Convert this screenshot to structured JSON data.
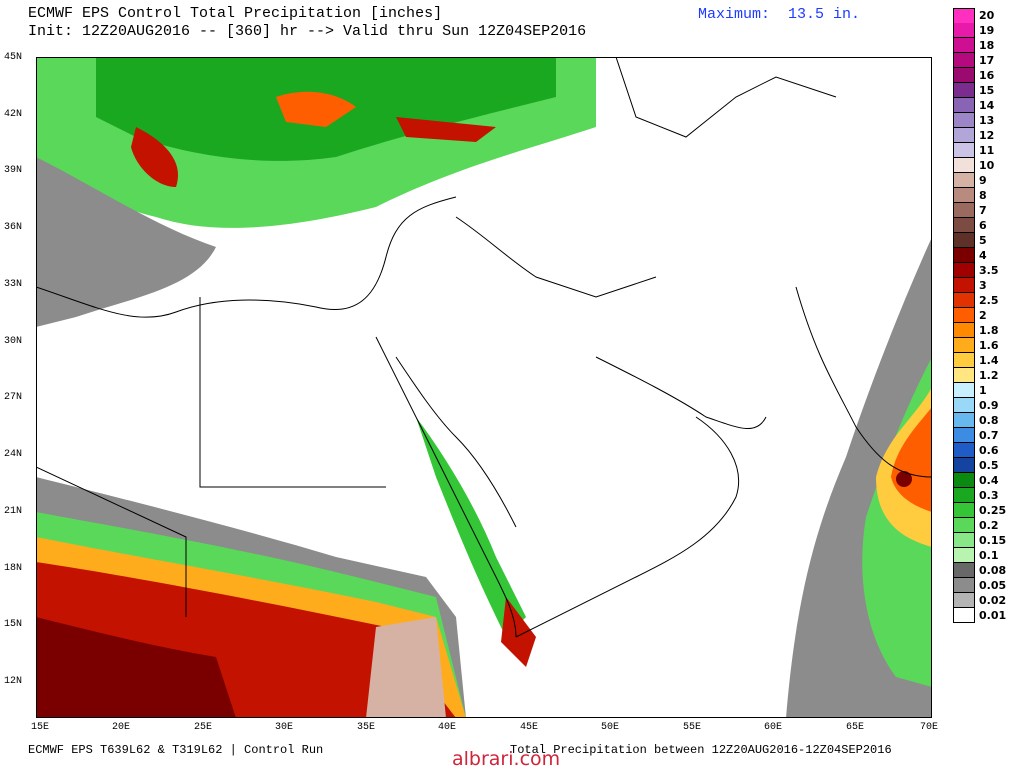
{
  "header": {
    "title": "ECMWF EPS Control Total Precipitation [inches]",
    "init": "Init: 12Z20AUG2016 -- [360] hr --> Valid thru Sun 12Z04SEP2016",
    "maximum": "Maximum:  13.5 in."
  },
  "lat_labels": [
    "45N",
    "42N",
    "39N",
    "36N",
    "33N",
    "30N",
    "27N",
    "24N",
    "21N",
    "18N",
    "15N",
    "12N"
  ],
  "lon_labels": [
    "15E",
    "20E",
    "25E",
    "30E",
    "35E",
    "40E",
    "45E",
    "50E",
    "55E",
    "60E",
    "65E",
    "70E"
  ],
  "legend": {
    "labels": [
      "20",
      "19",
      "18",
      "17",
      "16",
      "15",
      "14",
      "13",
      "12",
      "11",
      "10",
      "9",
      "8",
      "7",
      "6",
      "5",
      "4",
      "3.5",
      "3",
      "2.5",
      "2",
      "1.8",
      "1.6",
      "1.4",
      "1.2",
      "1",
      "0.9",
      "0.8",
      "0.7",
      "0.6",
      "0.5",
      "0.4",
      "0.3",
      "0.25",
      "0.2",
      "0.15",
      "0.1",
      "0.08",
      "0.05",
      "0.02",
      "0.01"
    ],
    "colors": [
      "#ff2fbf",
      "#e71aa9",
      "#cf0f93",
      "#b50a7e",
      "#9a0a6f",
      "#7b2d8f",
      "#8a64b4",
      "#9c86c8",
      "#b2a6d8",
      "#cbc4e6",
      "#f2e0da",
      "#d6b2a5",
      "#b98a7e",
      "#9b6a5f",
      "#7c4c42",
      "#5e3027",
      "#7a0000",
      "#a00000",
      "#c41200",
      "#e23200",
      "#ff5e00",
      "#ff8a00",
      "#ffac1c",
      "#ffcc40",
      "#ffe680",
      "#c8f0ff",
      "#9ad8f8",
      "#68b8f0",
      "#3c8ce4",
      "#1f5cc8",
      "#1444a0",
      "#0a8a10",
      "#1aa820",
      "#34c636",
      "#5ad85a",
      "#88e888",
      "#b8f4b0",
      "#686868",
      "#8c8c8c",
      "#b4b4b4",
      "#ffffff"
    ]
  },
  "footer": {
    "left": "ECMWF EPS T639L62 & T319L62 | Control Run",
    "right": "Total Precipitation between 12Z20AUG2016-12Z04SEP2016"
  },
  "watermark": "albrari.com"
}
